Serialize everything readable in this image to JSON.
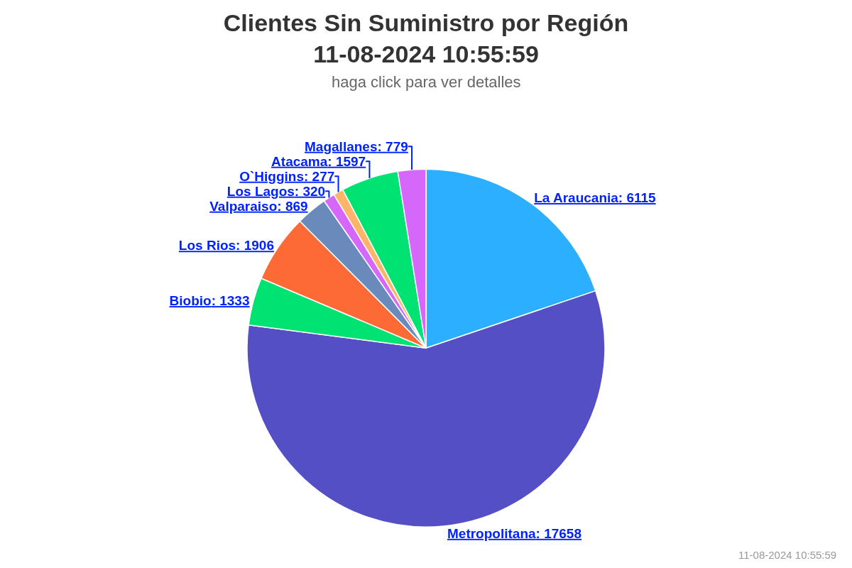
{
  "chart_data": {
    "type": "pie",
    "title": "Clientes Sin Suministro por Región\n11-08-2024 10:55:59",
    "subtitle": "haga click para ver detalles",
    "categories": [
      "La Araucania",
      "Metropolitana",
      "Biobio",
      "Los Rios",
      "Valparaiso",
      "Los Lagos",
      "O`Higgins",
      "Atacama",
      "Magallanes"
    ],
    "values": [
      6115,
      17658,
      1333,
      1906,
      869,
      320,
      277,
      1597,
      779
    ],
    "colors": [
      "#2caffe",
      "#544fc5",
      "#00e272",
      "#fe6a35",
      "#6b8abc",
      "#d568fb",
      "#feb56a",
      "#00e272",
      "#d568fb"
    ],
    "value_labels": [
      ": 6115",
      ": 17658",
      ": 1333",
      ": 1906",
      ": 869",
      ": 320",
      ": 277",
      ": 1597",
      ": 779"
    ],
    "legend": false,
    "annotations": [
      "11-08-2024 10:55:59"
    ]
  }
}
